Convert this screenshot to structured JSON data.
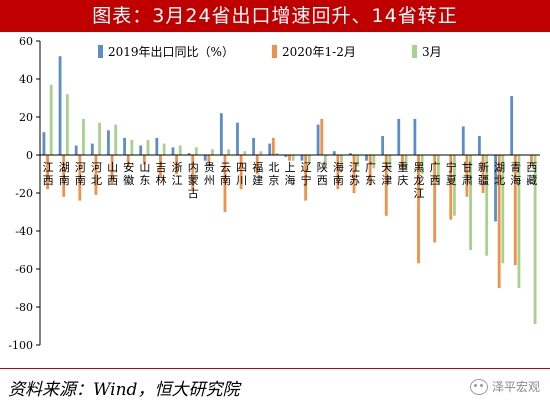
{
  "title": "图表：3月24省出口增速回升、14省转正",
  "source": "资料来源：Wind，恒大研究院",
  "watermark": "泽平宏观",
  "chart_data": {
    "type": "bar",
    "ylim": [
      -100,
      60
    ],
    "yticks": [
      60,
      40,
      20,
      0,
      -20,
      -40,
      -60,
      -80,
      -100
    ],
    "categories": [
      "江西",
      "湖南",
      "河南",
      "河北",
      "山西",
      "安徽",
      "山东",
      "吉林",
      "浙江",
      "内蒙古",
      "贵州",
      "云南",
      "四川",
      "福建",
      "北京",
      "上海",
      "辽宁",
      "陕西",
      "海南",
      "江苏",
      "广东",
      "天津",
      "重庆",
      "黑龙江",
      "广西",
      "宁夏",
      "甘肃",
      "新疆",
      "湖北",
      "青海",
      "西藏"
    ],
    "series": [
      {
        "name": "2019年出口同比（%）",
        "color": "#5b8ec9",
        "values": [
          12,
          52,
          5,
          6,
          13,
          9,
          5,
          9,
          4,
          1,
          -3,
          22,
          17,
          9,
          6,
          -1,
          -3,
          16,
          2,
          1,
          -3,
          10,
          19,
          19,
          0,
          0,
          15,
          10,
          -35,
          31,
          0
        ]
      },
      {
        "name": "2020年1-2月",
        "color": "#f0914a",
        "values": [
          -18,
          -22,
          -24,
          -21,
          -15,
          -6,
          -5,
          -12,
          -10,
          -18,
          -4,
          -30,
          -18,
          -10,
          9,
          -3,
          -24,
          19,
          -18,
          -20,
          -16,
          -32,
          -7,
          -57,
          -46,
          -34,
          -22,
          -20,
          -70,
          -58,
          -5
        ]
      },
      {
        "name": "3月",
        "color": "#a9d18e",
        "values": [
          37,
          32,
          19,
          17,
          16,
          8,
          8,
          6,
          5,
          4,
          3,
          3,
          2,
          2,
          1,
          -3,
          -4,
          -5,
          -6,
          -6,
          -7,
          -8,
          -8,
          -10,
          -15,
          -32,
          -50,
          -53,
          -57,
          -70,
          -89
        ]
      }
    ]
  }
}
